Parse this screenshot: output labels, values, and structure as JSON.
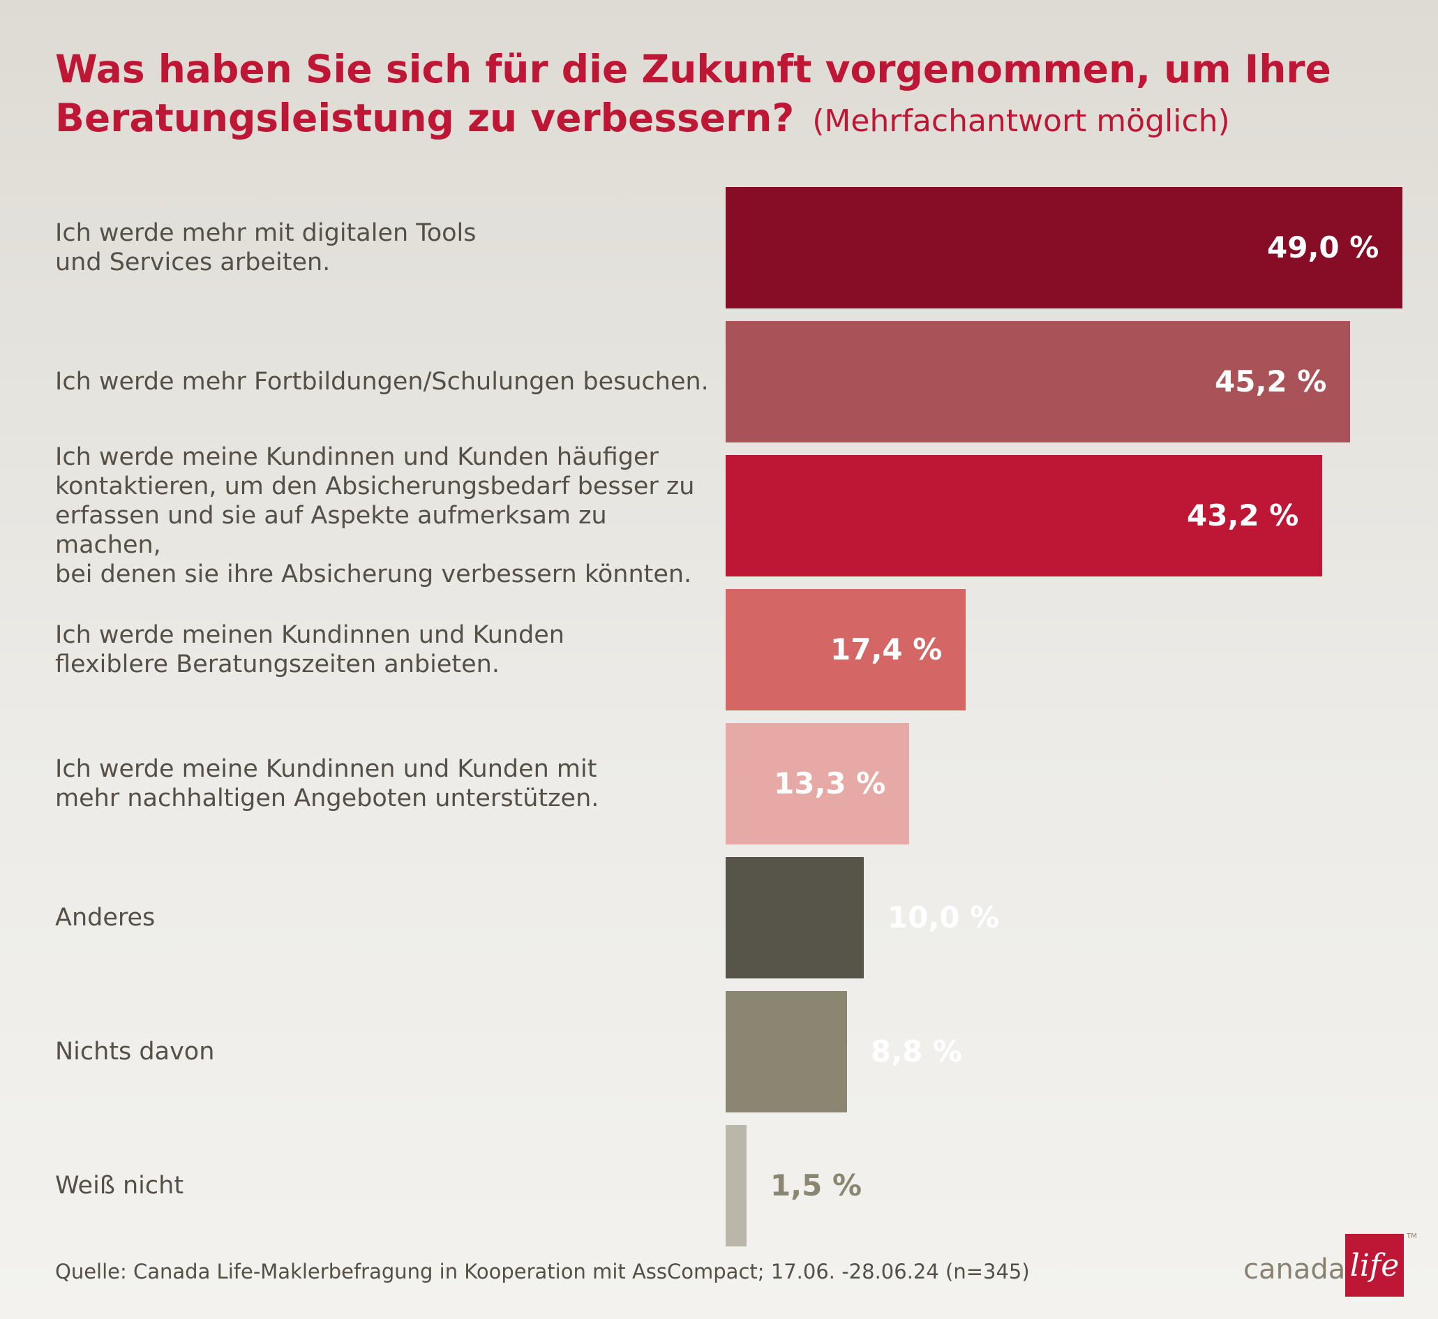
{
  "title": {
    "main": "Was haben Sie sich für die Zukunft vorgenommen, um Ihre Beratungsleistung zu verbessern?",
    "subtitle": "(Mehrfachantwort möglich)"
  },
  "chart_data": {
    "type": "bar",
    "orientation": "horizontal",
    "title": "Was haben Sie sich für die Zukunft vorgenommen, um Ihre Beratungsleistung zu verbessern?",
    "subtitle": "(Mehrfachantwort möglich)",
    "categories": [
      "Ich werde mehr mit digitalen Tools\nund Services arbeiten.",
      "Ich werde mehr Fortbildungen/Schulungen besuchen.",
      "Ich werde meine Kundinnen und Kunden häufiger\nkontaktieren, um den Absicherungsbedarf besser zu\nerfassen und sie auf Aspekte aufmerksam zu machen,\nbei denen sie ihre Absicherung verbessern könnten.",
      "Ich werde meinen Kundinnen und Kunden\nflexiblere Beratungszeiten anbieten.",
      "Ich werde meine Kundinnen und Kunden mit\nmehr nachhaltigen Angeboten unterstützen.",
      "Anderes",
      "Nichts davon",
      "Weiß nicht"
    ],
    "values": [
      49.0,
      45.2,
      43.2,
      17.4,
      13.3,
      10.0,
      8.8,
      1.5
    ],
    "value_labels": [
      "49,0 %",
      "45,2 %",
      "43,2 %",
      "17,4 %",
      "13,3 %",
      "10,0 %",
      "8,8 %",
      "1,5 %"
    ],
    "colors": [
      "#870d26",
      "#a95257",
      "#be1736",
      "#d46666",
      "#e7a9a5",
      "#575549",
      "#8b8672",
      "#bbb6aa"
    ],
    "label_colors": [
      "#ffffff",
      "#ffffff",
      "#ffffff",
      "#ffffff",
      "#ffffff",
      "#ffffff",
      "#ffffff",
      "#8b8672"
    ],
    "xlim": [
      0,
      49.0
    ],
    "grid": false,
    "legend": "none"
  },
  "source": "Quelle: Canada Life-Maklerbefragung in Kooperation mit AssCompact; 17.06. -28.06.24 (n=345)",
  "logo": {
    "word": "canada",
    "mark": "life",
    "tm": "TM",
    "colors": {
      "box": "#be1736",
      "word": "#8a8270"
    }
  }
}
